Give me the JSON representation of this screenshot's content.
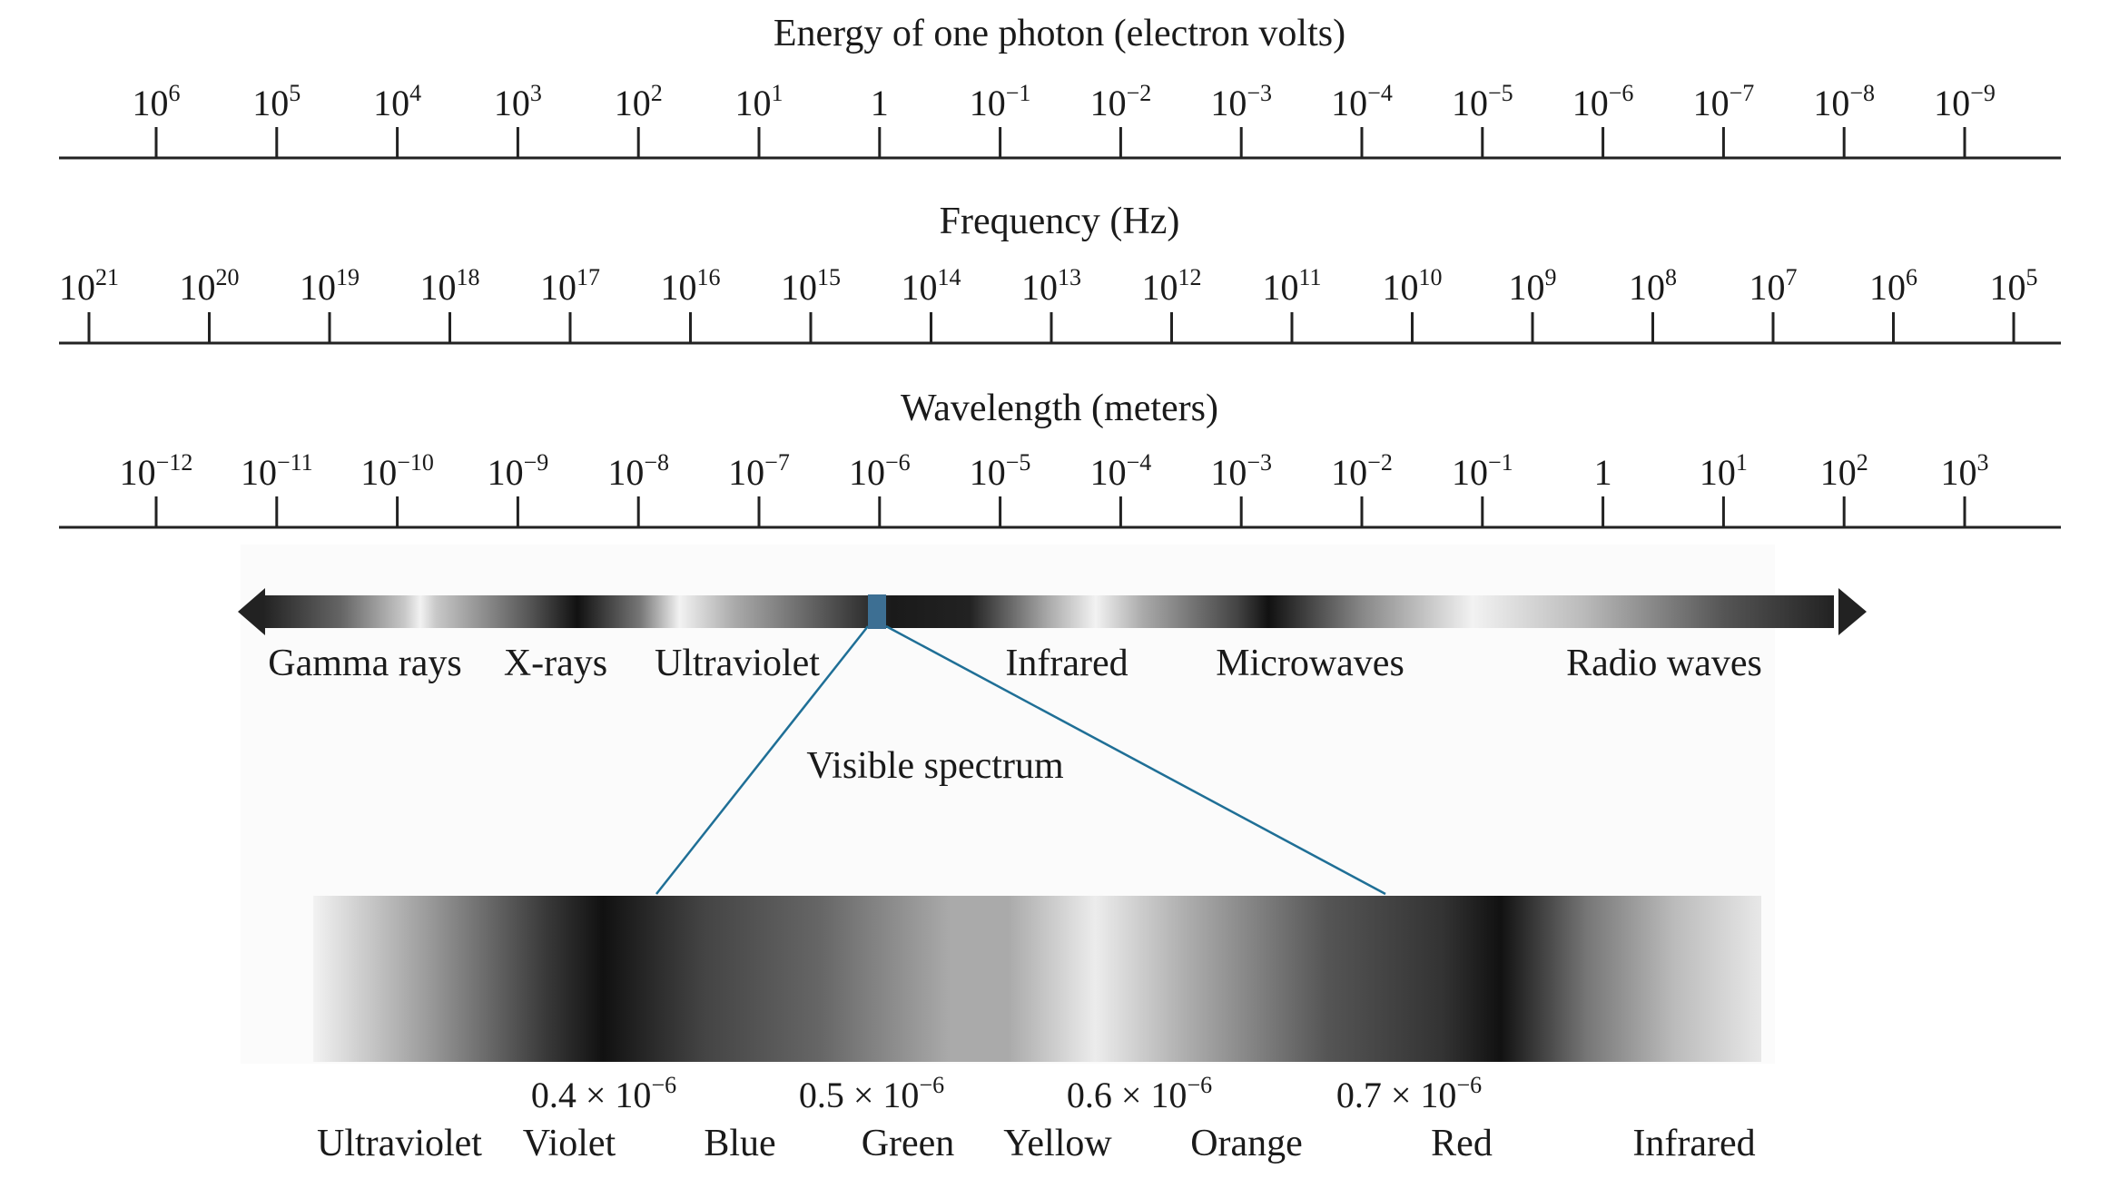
{
  "energy_axis": {
    "title": "Energy of one photon (electron volts)",
    "ticks": [
      {
        "base": "10",
        "exp": "6"
      },
      {
        "base": "10",
        "exp": "5"
      },
      {
        "base": "10",
        "exp": "4"
      },
      {
        "base": "10",
        "exp": "3"
      },
      {
        "base": "10",
        "exp": "2"
      },
      {
        "base": "10",
        "exp": "1"
      },
      {
        "base": "1",
        "exp": ""
      },
      {
        "base": "10",
        "exp": "−1"
      },
      {
        "base": "10",
        "exp": "−2"
      },
      {
        "base": "10",
        "exp": "−3"
      },
      {
        "base": "10",
        "exp": "−4"
      },
      {
        "base": "10",
        "exp": "−5"
      },
      {
        "base": "10",
        "exp": "−6"
      },
      {
        "base": "10",
        "exp": "−7"
      },
      {
        "base": "10",
        "exp": "−8"
      },
      {
        "base": "10",
        "exp": "−9"
      }
    ]
  },
  "frequency_axis": {
    "title": "Frequency (Hz)",
    "ticks": [
      {
        "base": "10",
        "exp": "21"
      },
      {
        "base": "10",
        "exp": "20"
      },
      {
        "base": "10",
        "exp": "19"
      },
      {
        "base": "10",
        "exp": "18"
      },
      {
        "base": "10",
        "exp": "17"
      },
      {
        "base": "10",
        "exp": "16"
      },
      {
        "base": "10",
        "exp": "15"
      },
      {
        "base": "10",
        "exp": "14"
      },
      {
        "base": "10",
        "exp": "13"
      },
      {
        "base": "10",
        "exp": "12"
      },
      {
        "base": "10",
        "exp": "11"
      },
      {
        "base": "10",
        "exp": "10"
      },
      {
        "base": "10",
        "exp": "9"
      },
      {
        "base": "10",
        "exp": "8"
      },
      {
        "base": "10",
        "exp": "7"
      },
      {
        "base": "10",
        "exp": "6"
      },
      {
        "base": "10",
        "exp": "5"
      }
    ]
  },
  "wavelength_axis": {
    "title": "Wavelength (meters)",
    "ticks": [
      {
        "base": "10",
        "exp": "−12"
      },
      {
        "base": "10",
        "exp": "−11"
      },
      {
        "base": "10",
        "exp": "−10"
      },
      {
        "base": "10",
        "exp": "−9"
      },
      {
        "base": "10",
        "exp": "−8"
      },
      {
        "base": "10",
        "exp": "−7"
      },
      {
        "base": "10",
        "exp": "−6"
      },
      {
        "base": "10",
        "exp": "−5"
      },
      {
        "base": "10",
        "exp": "−4"
      },
      {
        "base": "10",
        "exp": "−3"
      },
      {
        "base": "10",
        "exp": "−2"
      },
      {
        "base": "10",
        "exp": "−1"
      },
      {
        "base": "1",
        "exp": ""
      },
      {
        "base": "10",
        "exp": "1"
      },
      {
        "base": "10",
        "exp": "2"
      },
      {
        "base": "10",
        "exp": "3"
      }
    ]
  },
  "spectrum_bands": [
    "Gamma rays",
    "X-rays",
    "Ultraviolet",
    "Infrared",
    "Microwaves",
    "Radio waves"
  ],
  "visible_label": "Visible spectrum",
  "visible_wavelengths": [
    {
      "coef": "0.4 × 10",
      "exp": "−6"
    },
    {
      "coef": "0.5 × 10",
      "exp": "−6"
    },
    {
      "coef": "0.6 × 10",
      "exp": "−6"
    },
    {
      "coef": "0.7 × 10",
      "exp": "−6"
    }
  ],
  "visible_colors": [
    "Ultraviolet",
    "Violet",
    "Blue",
    "Green",
    "Yellow",
    "Orange",
    "Red",
    "Infrared"
  ],
  "colors": {
    "connector_line": "#1f6f96",
    "visible_marker": "#3d6f93"
  }
}
